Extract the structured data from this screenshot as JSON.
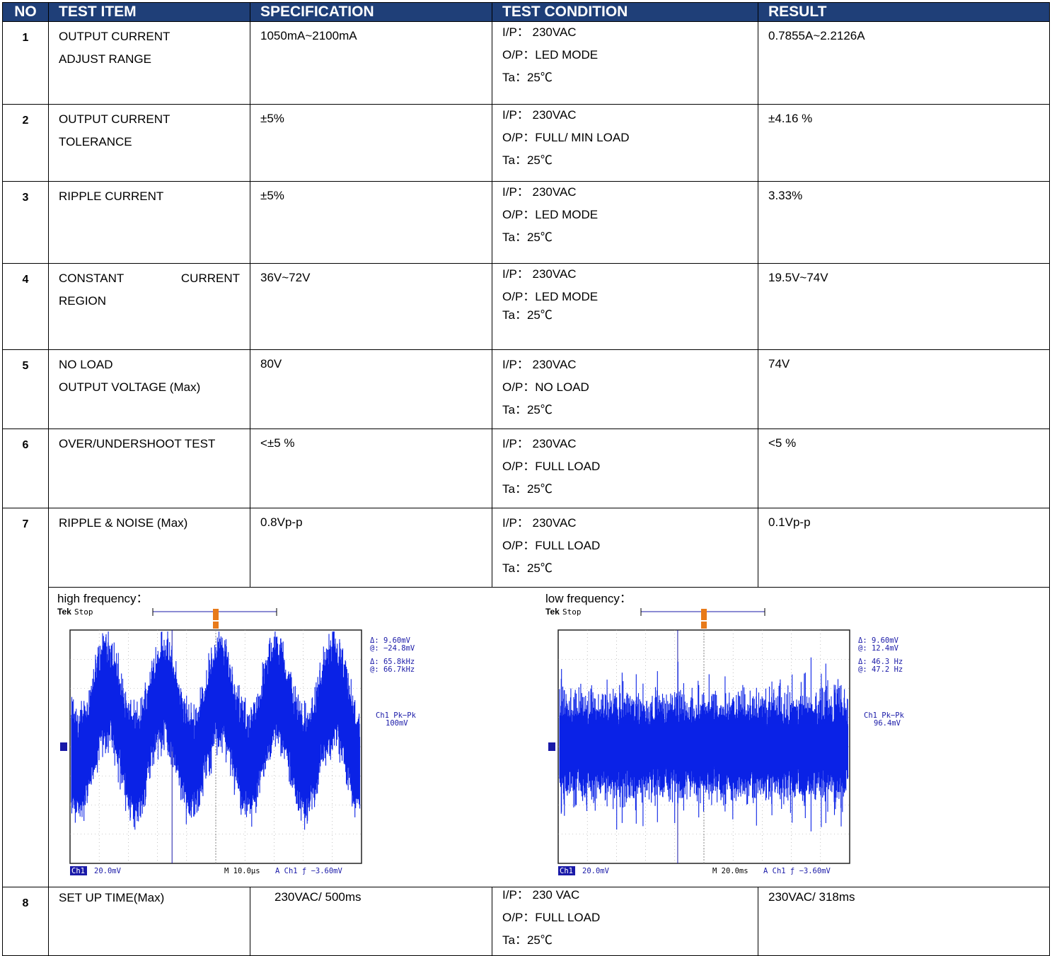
{
  "headers": {
    "no": "NO",
    "test_item": "TEST ITEM",
    "specification": "SPECIFICATION",
    "test_condition": "TEST CONDITION",
    "result": "RESULT"
  },
  "rows": [
    {
      "no": "1",
      "item": [
        "OUTPUT CURRENT",
        "ADJUST RANGE"
      ],
      "spec": "1050mA~2100mA",
      "cond": [
        "I/P：  230VAC",
        "O/P：LED MODE",
        "Ta：25℃"
      ],
      "result": "0.7855A~2.2126A"
    },
    {
      "no": "2",
      "item": [
        "OUTPUT CURRENT",
        "TOLERANCE"
      ],
      "spec": "±5%",
      "cond": [
        "I/P：  230VAC",
        "O/P：FULL/ MIN LOAD",
        "Ta：25℃"
      ],
      "result": "±4.16 %"
    },
    {
      "no": "3",
      "item": [
        "RIPPLE CURRENT"
      ],
      "spec": "±5%",
      "cond": [
        "I/P：  230VAC",
        "O/P：LED MODE",
        "Ta：25℃"
      ],
      "result": "3.33%"
    },
    {
      "no": "4",
      "item": [
        "CONSTANT",
        "CURRENT",
        "REGION"
      ],
      "spec": "36V~72V",
      "cond": [
        "I/P：  230VAC",
        "O/P：LED MODE",
        "Ta：25℃"
      ],
      "result": "19.5V~74V"
    },
    {
      "no": "5",
      "item": [
        "NO LOAD",
        "OUTPUT VOLTAGE (Max)"
      ],
      "spec": "80V",
      "cond": [
        "I/P：  230VAC",
        "O/P：NO LOAD",
        "Ta：25℃"
      ],
      "result": "74V"
    },
    {
      "no": "6",
      "item": [
        "OVER/UNDERSHOOT TEST"
      ],
      "spec": "<±5 %",
      "cond": [
        "I/P：  230VAC",
        "O/P：FULL LOAD",
        "Ta：25℃"
      ],
      "result": "<5 %"
    },
    {
      "no": "7",
      "item": [
        "RIPPLE & NOISE (Max)"
      ],
      "spec": "0.8Vp-p",
      "cond": [
        "I/P：  230VAC",
        "O/P：FULL LOAD",
        "Ta：25℃"
      ],
      "result": "0.1Vp-p"
    },
    {
      "no": "8",
      "item": [
        "SET UP TIME(Max)"
      ],
      "spec": "230VAC/ 500ms",
      "cond": [
        "I/P：  230 VAC",
        "O/P：FULL LOAD",
        "Ta：25℃"
      ],
      "result": "230VAC/ 318ms"
    }
  ],
  "scopes": [
    {
      "caption": "high frequency：",
      "brand": "Tek",
      "state": "Stop",
      "delta_v": "Δ:   9.60mV",
      "at_v": "@:  −24.8mV",
      "delta_f": "Δ:  65.8kHz",
      "at_f": "@:  66.7kHz",
      "meas_label": "Ch1 Pk−Pk",
      "meas_value": "100mV",
      "ch_label": "Ch1",
      "ch_scale": "20.0mV",
      "timebase": "M 10.0μs",
      "trigger": "A  Ch1  ƒ −3.60mV",
      "trigger_pos": "50.40 %",
      "waveform": "sine",
      "trace_color": "#0a22e6"
    },
    {
      "caption": "low frequency：",
      "brand": "Tek",
      "state": "Stop",
      "delta_v": "Δ:   9.60mV",
      "at_v": "@:   12.4mV",
      "delta_f": "Δ:   46.3 Hz",
      "at_f": "@:   47.2 Hz",
      "meas_label": "Ch1 Pk−Pk",
      "meas_value": "96.4mV",
      "ch_label": "Ch1",
      "ch_scale": "20.0mV",
      "timebase": "M 20.0ms",
      "trigger": "A  Ch1  ƒ −3.60mV",
      "trigger_pos": "50.40 %",
      "waveform": "noise",
      "trace_color": "#0a22e6"
    }
  ],
  "colors": {
    "header_bg": "#1f3f78",
    "scope_trace": "#0a22e6",
    "scope_label": "#1a1aa8",
    "trigger_marker": "#e87a1a"
  }
}
